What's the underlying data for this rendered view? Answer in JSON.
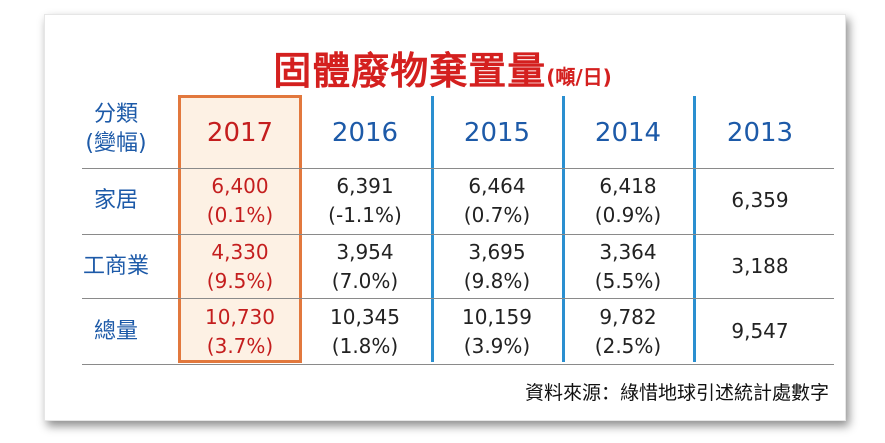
{
  "title": "固體廢物棄置量",
  "unit": "(噸/日)",
  "source": "資料來源：綠惜地球引述統計處數字",
  "chart_data": {
    "type": "table",
    "header_label": [
      "分類",
      "(變幅)"
    ],
    "highlight_year": "2017",
    "years": [
      "2017",
      "2016",
      "2015",
      "2014",
      "2013"
    ],
    "rows": [
      {
        "category": "家居",
        "values": [
          "6,400",
          "6,391",
          "6,464",
          "6,418",
          "6,359"
        ],
        "changes": [
          "(0.1%)",
          "(-1.1%)",
          "(0.7%)",
          "(0.9%)",
          null
        ]
      },
      {
        "category": "工商業",
        "values": [
          "4,330",
          "3,954",
          "3,695",
          "3,364",
          "3,188"
        ],
        "changes": [
          "(9.5%)",
          "(7.0%)",
          "(9.8%)",
          "(5.5%)",
          null
        ]
      },
      {
        "category": "總量",
        "values": [
          "10,730",
          "10,345",
          "10,159",
          "9,782",
          "9,547"
        ],
        "changes": [
          "(3.7%)",
          "(1.8%)",
          "(3.9%)",
          "(2.5%)",
          null
        ]
      }
    ]
  },
  "colors": {
    "title": "#d4201f",
    "category": "#1d5aa8",
    "highlight": "#c41e1e",
    "highlight_border": "#e2783d",
    "highlight_fill": "#fdf1e4",
    "divider": "#2a8fd0"
  }
}
